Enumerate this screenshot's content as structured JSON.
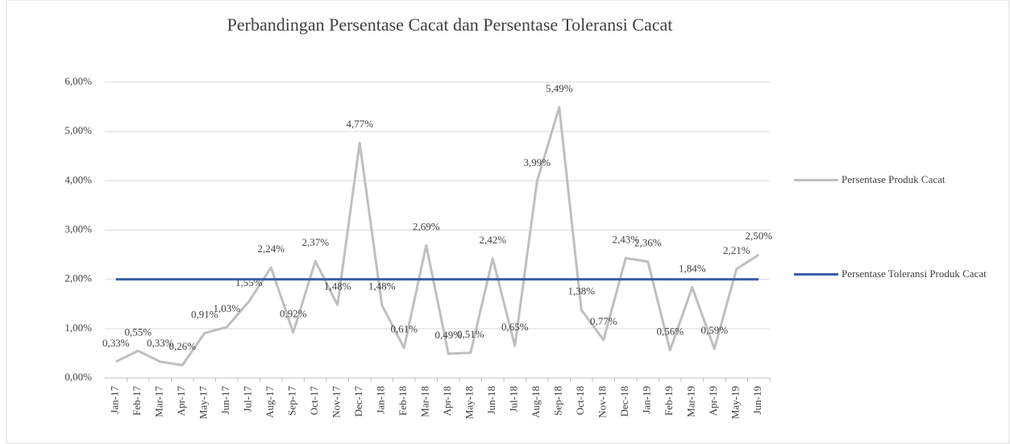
{
  "chart_data": {
    "type": "line",
    "title": "Perbandingan Persentase Cacat dan Persentase Toleransi Cacat",
    "categories": [
      "Jan-17",
      "Feb-17",
      "Mar-17",
      "Apr-17",
      "May-17",
      "Jun-17",
      "Jul-17",
      "Aug-17",
      "Sep-17",
      "Oct-17",
      "Nov-17",
      "Dec-17",
      "Jan-18",
      "Feb-18",
      "Mar-18",
      "Apr-18",
      "May-18",
      "Jun-18",
      "Jul-18",
      "Aug-18",
      "Sep-18",
      "Oct-18",
      "Nov-18",
      "Dec-18",
      "Jan-19",
      "Feb-19",
      "Mar-19",
      "Apr-19",
      "May-19",
      "Jun-19"
    ],
    "series": [
      {
        "name": "Persentase Produk Cacat",
        "color": "#bfbfbf",
        "values": [
          0.33,
          0.55,
          0.33,
          0.26,
          0.91,
          1.03,
          1.55,
          2.24,
          0.92,
          2.37,
          1.48,
          4.77,
          1.48,
          0.61,
          2.69,
          0.49,
          0.51,
          2.42,
          0.65,
          3.99,
          5.49,
          1.38,
          0.77,
          2.43,
          2.36,
          0.56,
          1.84,
          0.59,
          2.21,
          2.5
        ],
        "value_labels": [
          "0,33%",
          "0,55%",
          "0,33%",
          "0,26%",
          "0,91%",
          "1,03%",
          "1,55%",
          "2,24%",
          "0,92%",
          "2,37%",
          "1,48%",
          "4,77%",
          "1,48%",
          "0,61%",
          "2,69%",
          "0,49%",
          "0,51%",
          "2,42%",
          "0,65%",
          "3,99%",
          "5,49%",
          "1,38%",
          "0,77%",
          "2,43%",
          "2,36%",
          "0,56%",
          "1,84%",
          "0,59%",
          "2,21%",
          "2,50%"
        ]
      },
      {
        "name": "Persentase Toleransi Produk Cacat",
        "color": "#3b5fa8",
        "values": [
          2,
          2,
          2,
          2,
          2,
          2,
          2,
          2,
          2,
          2,
          2,
          2,
          2,
          2,
          2,
          2,
          2,
          2,
          2,
          2,
          2,
          2,
          2,
          2,
          2,
          2,
          2,
          2,
          2,
          2
        ]
      }
    ],
    "ylim": [
      0,
      6
    ],
    "yticks": [
      {
        "value": 0,
        "label": "0,00%"
      },
      {
        "value": 1,
        "label": "1,00%"
      },
      {
        "value": 2,
        "label": "2,00%"
      },
      {
        "value": 3,
        "label": "3,00%"
      },
      {
        "value": 4,
        "label": "4,00%"
      },
      {
        "value": 5,
        "label": "5,00%"
      },
      {
        "value": 6,
        "label": "6,00%"
      }
    ],
    "grid": true,
    "legend": "right"
  }
}
